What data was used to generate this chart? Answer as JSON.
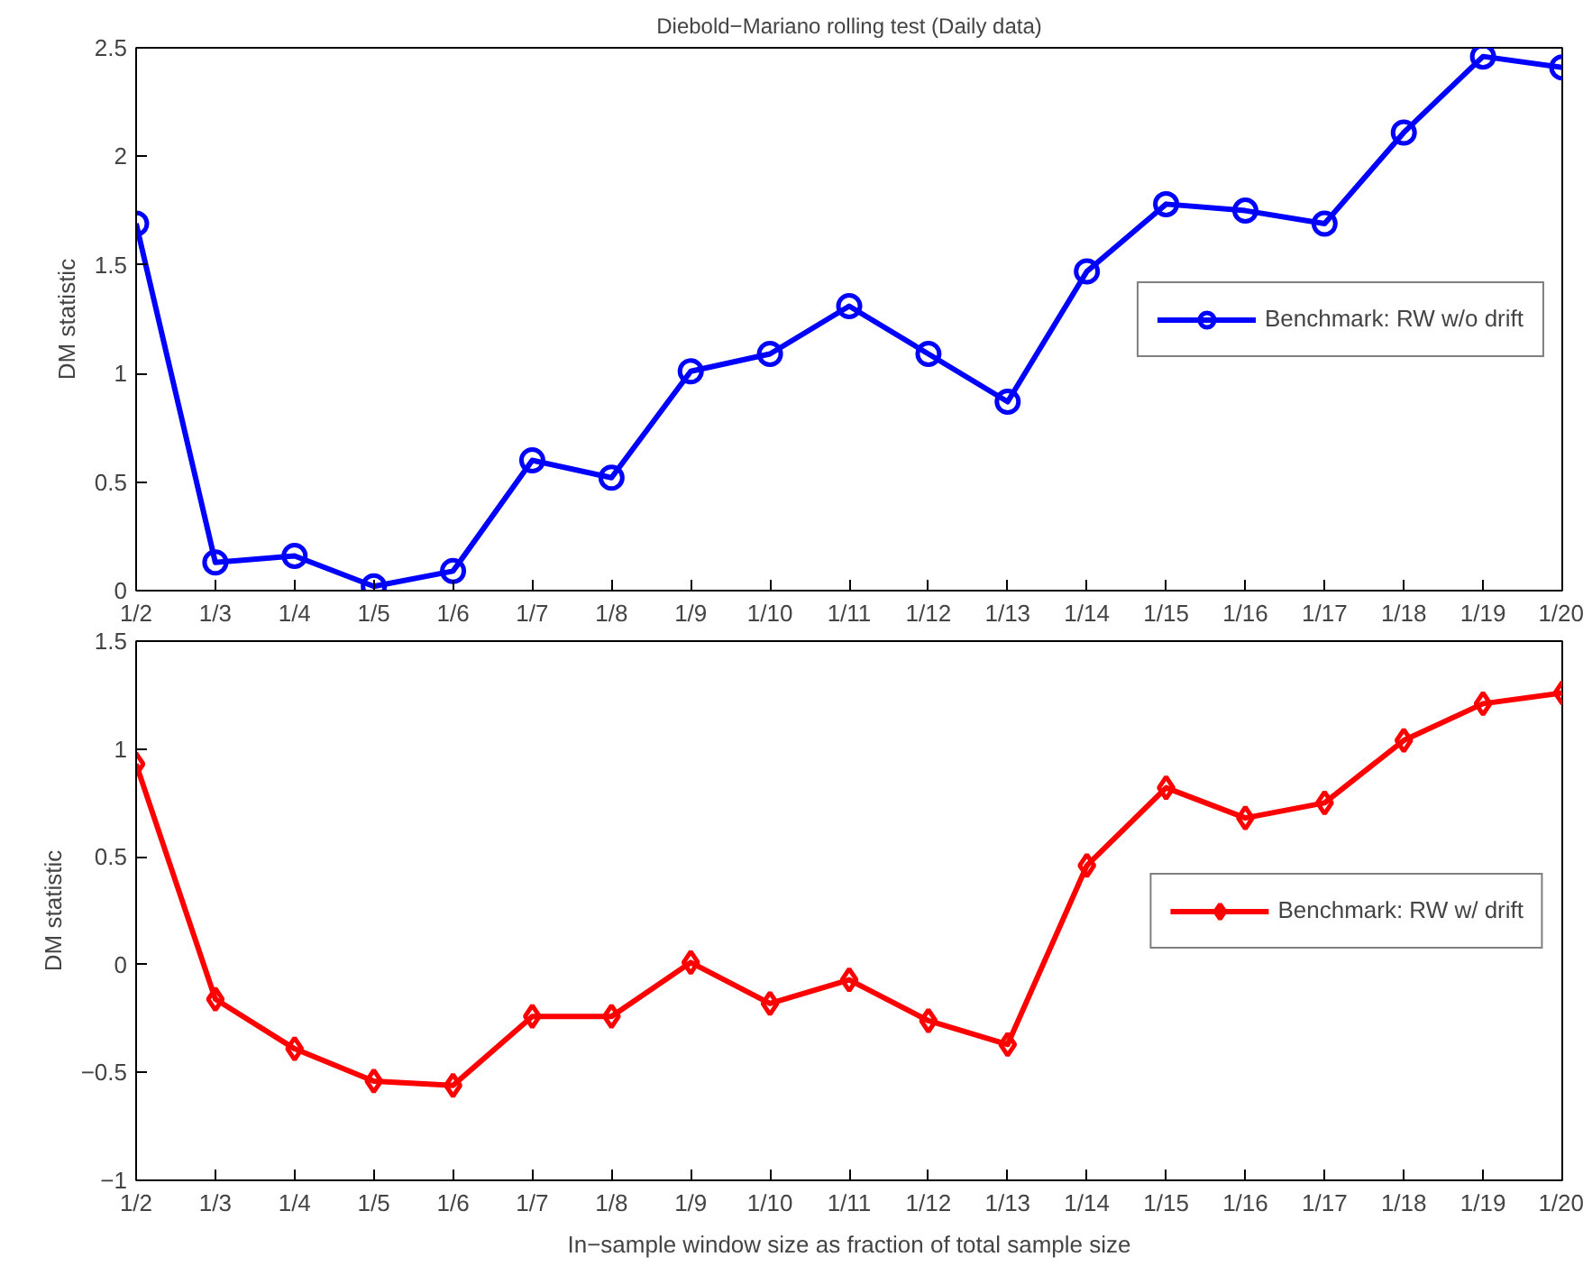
{
  "chart_data": [
    {
      "type": "line",
      "title": "Diebold−Mariano rolling test (Daily data)",
      "ylabel": "DM statistic",
      "categories": [
        "1/2",
        "1/3",
        "1/4",
        "1/5",
        "1/6",
        "1/7",
        "1/8",
        "1/9",
        "1/10",
        "1/11",
        "1/12",
        "1/13",
        "1/14",
        "1/15",
        "1/16",
        "1/17",
        "1/18",
        "1/19",
        "1/20"
      ],
      "series": [
        {
          "name": "Benchmark: RW w/o drift",
          "color": "#0000ff",
          "values": [
            1.69,
            0.13,
            0.16,
            0.02,
            0.09,
            0.6,
            0.52,
            1.01,
            1.09,
            1.31,
            1.09,
            0.87,
            1.47,
            1.78,
            1.75,
            1.69,
            2.11,
            2.46,
            2.41
          ]
        }
      ],
      "ylim": [
        0,
        2.5
      ],
      "yticks": [
        0,
        0.5,
        1,
        1.5,
        2,
        2.5
      ],
      "legend": "right",
      "marker": "circle",
      "line_style": "solid",
      "grid": false
    },
    {
      "type": "line",
      "xlabel": "In−sample window size as fraction of total sample size",
      "ylabel": "DM statistic",
      "categories": [
        "1/2",
        "1/3",
        "1/4",
        "1/5",
        "1/6",
        "1/7",
        "1/8",
        "1/9",
        "1/10",
        "1/11",
        "1/12",
        "1/13",
        "1/14",
        "1/15",
        "1/16",
        "1/17",
        "1/18",
        "1/19",
        "1/20"
      ],
      "series": [
        {
          "name": "Benchmark: RW w/ drift",
          "color": "#ff0000",
          "values": [
            0.93,
            -0.16,
            -0.39,
            -0.54,
            -0.56,
            -0.24,
            -0.24,
            0.01,
            -0.18,
            -0.07,
            -0.26,
            -0.37,
            0.46,
            0.82,
            0.68,
            0.75,
            1.04,
            1.21,
            1.26
          ]
        }
      ],
      "ylim": [
        -1,
        1.5
      ],
      "yticks": [
        -1,
        -0.5,
        0,
        0.5,
        1,
        1.5
      ],
      "legend": "right",
      "marker": "diamond",
      "line_style": "solid",
      "grid": false
    }
  ]
}
